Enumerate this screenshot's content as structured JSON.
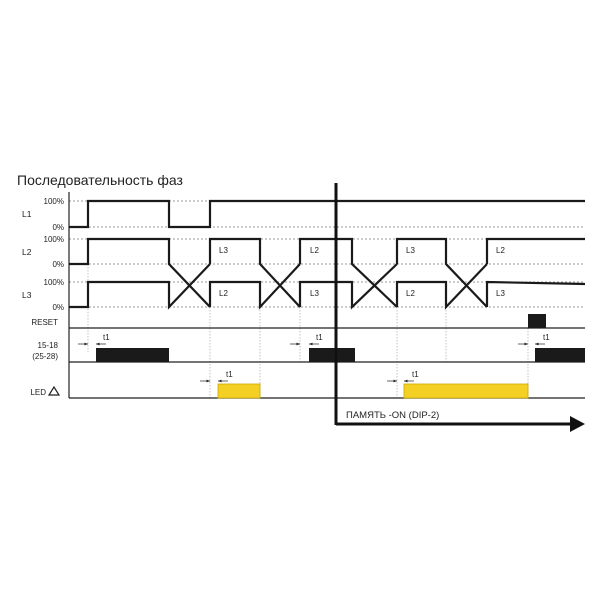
{
  "title": "Последовательность фаз",
  "rows": {
    "l1": {
      "name": "L1",
      "high": "100%",
      "low": "0%"
    },
    "l2": {
      "name": "L2",
      "high": "100%",
      "low": "0%"
    },
    "l3": {
      "name": "L3",
      "high": "100%",
      "low": "0%"
    },
    "reset": {
      "name": "RESET"
    },
    "relay": {
      "name": "15-18",
      "name2": "(25-28)"
    },
    "led": {
      "name": "LED",
      "icon": "warning-triangle-icon"
    }
  },
  "phase_labels": {
    "seg1_top": "L3",
    "seg1_bottom": "L2",
    "seg2_top": "L2",
    "seg2_bottom": "L3",
    "seg3_top": "L3",
    "seg3_bottom": "L2",
    "seg4_top": "L2",
    "seg4_bottom": "L3"
  },
  "delay_label": "t1",
  "memory_label": "ПАМЯТЬ -ON (DIP-2)",
  "colors": {
    "signal": "#1a1a1a",
    "led_bar": "#f5d024",
    "led_border": "#c9a800"
  }
}
